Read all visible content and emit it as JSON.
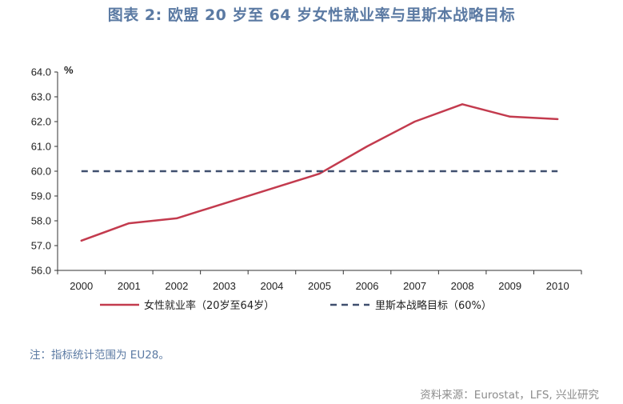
{
  "title": "图表 2: 欧盟 20 岁至 64 岁女性就业率与里斯本战略目标",
  "note": "注：指标统计范围为 EU28。",
  "source": "资料来源：Eurostat，LFS, 兴业研究",
  "chart_data": {
    "type": "line",
    "unit": "%",
    "categories": [
      "2000",
      "2001",
      "2002",
      "2003",
      "2004",
      "2005",
      "2006",
      "2007",
      "2008",
      "2009",
      "2010"
    ],
    "series": [
      {
        "name": "女性就业率（20岁至64岁）",
        "color": "#c33b4e",
        "style": "solid",
        "values": [
          57.2,
          57.9,
          58.1,
          58.7,
          59.3,
          59.9,
          61.0,
          62.0,
          62.7,
          62.2,
          62.1
        ]
      },
      {
        "name": "里斯本战略目标（60%）",
        "color": "#3f4f6e",
        "style": "dashed",
        "values": [
          60,
          60,
          60,
          60,
          60,
          60,
          60,
          60,
          60,
          60,
          60
        ]
      }
    ],
    "ylim": [
      56.0,
      64.0
    ],
    "yticks": [
      "56.0",
      "57.0",
      "58.0",
      "59.0",
      "60.0",
      "61.0",
      "62.0",
      "63.0",
      "64.0"
    ],
    "grid": false,
    "legend_position": "bottom"
  }
}
